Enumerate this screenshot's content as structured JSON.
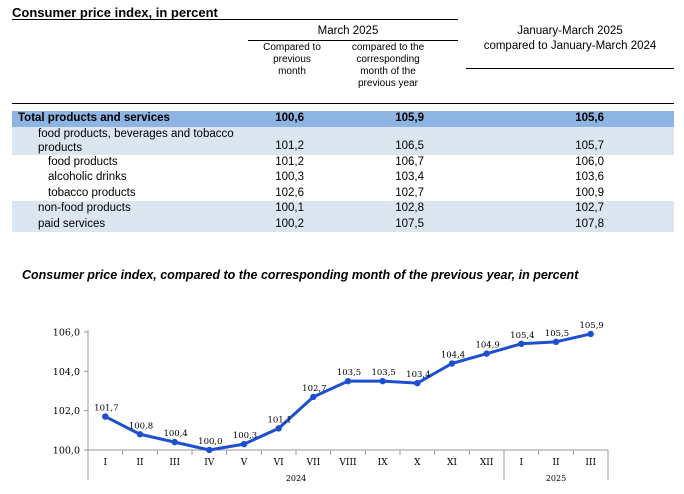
{
  "table_title": "Consumer price index, in percent",
  "header": {
    "group1": "March 2025",
    "col1": "Compared to previous month",
    "col2": "compared to the corresponding month of the previous year",
    "group2_line1": "January-March 2025",
    "group2_line2": "compared to January-March 2024"
  },
  "rows": [
    {
      "label": "Total products and services",
      "v1": "100,6",
      "v2": "105,9",
      "v3": "105,6"
    },
    {
      "label": "food products, beverages and tobacco",
      "label2": "products",
      "v1": "101,2",
      "v2": "106,5",
      "v3": "105,7"
    },
    {
      "label": "food products",
      "v1": "101,2",
      "v2": "106,7",
      "v3": "106,0"
    },
    {
      "label": "alcoholic drinks",
      "v1": "100,3",
      "v2": "103,4",
      "v3": "103,6"
    },
    {
      "label": "tobacco products",
      "v1": "102,6",
      "v2": "102,7",
      "v3": "100,9"
    },
    {
      "label": "non-food products",
      "v1": "100,1",
      "v2": "102,8",
      "v3": "102,7"
    },
    {
      "label": "paid services",
      "v1": "100,2",
      "v2": "107,5",
      "v3": "107,8"
    }
  ],
  "chart_data": {
    "type": "line",
    "title": "Consumer price index, compared to the corresponding month of the previous year, in percent",
    "categories": [
      "I",
      "II",
      "III",
      "IV",
      "V",
      "VI",
      "VII",
      "VIII",
      "IX",
      "X",
      "XI",
      "XII",
      "I",
      "II",
      "III"
    ],
    "year_labels": [
      "2024",
      "2025"
    ],
    "values": [
      101.7,
      100.8,
      100.4,
      100.0,
      100.3,
      101.1,
      102.7,
      103.5,
      103.5,
      103.4,
      104.4,
      104.9,
      105.4,
      105.5,
      105.9
    ],
    "value_labels": [
      "101,7",
      "100,8",
      "100,4",
      "100,0",
      "100,3",
      "101,1",
      "102,7",
      "103,5",
      "103,5",
      "103,4",
      "104,4",
      "104,9",
      "105,4",
      "105,5",
      "105,9"
    ],
    "y_ticks": [
      "100,0",
      "102,0",
      "104,0",
      "106,0"
    ],
    "y_tick_values": [
      100,
      102,
      104,
      106
    ],
    "ylim": [
      100,
      106
    ],
    "xlabel": "",
    "ylabel": "",
    "grid": false,
    "line_color": "#1f4fd1"
  }
}
